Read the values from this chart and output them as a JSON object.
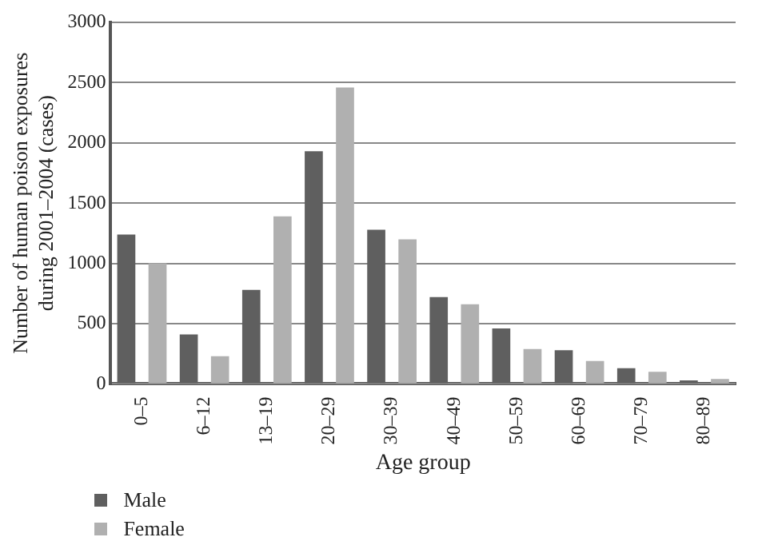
{
  "chart_data": {
    "type": "bar",
    "xlabel": "Age group",
    "ylabel": "Number of human poison exposures\nduring 2001–2004 (cases)",
    "categories": [
      "0–5",
      "6–12",
      "13–19",
      "20–29",
      "30–39",
      "40–49",
      "50–59",
      "60–69",
      "70–79",
      "80–89"
    ],
    "series": [
      {
        "name": "Male",
        "color": "#5f5f5f",
        "values": [
          1240,
          410,
          780,
          1930,
          1280,
          720,
          460,
          280,
          130,
          30
        ]
      },
      {
        "name": "Female",
        "color": "#b0b0b0",
        "values": [
          1000,
          230,
          1390,
          2460,
          1200,
          660,
          290,
          190,
          100,
          40
        ]
      }
    ],
    "ylim": [
      0,
      3000
    ],
    "yticks": [
      0,
      500,
      1000,
      1500,
      2000,
      2500,
      3000
    ],
    "grid": "y",
    "legend": "bottom left"
  }
}
